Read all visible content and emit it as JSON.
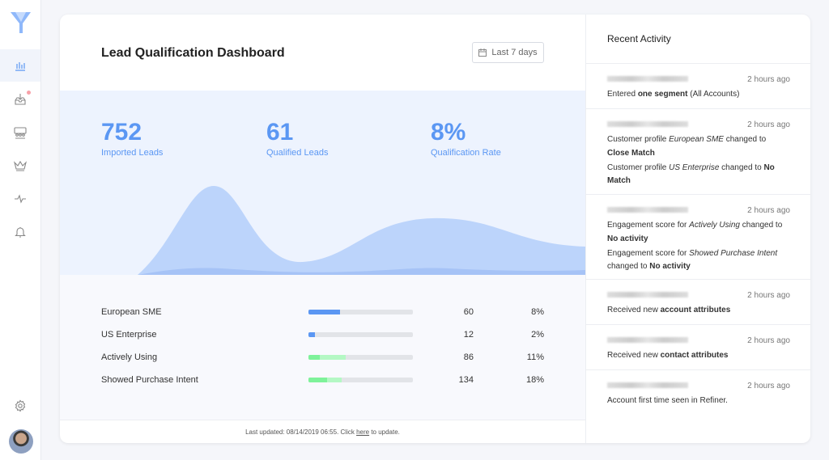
{
  "sidebar": {
    "items": [
      "dashboard",
      "imports",
      "segments",
      "profiles",
      "engagement",
      "notifications"
    ],
    "settings": "settings"
  },
  "title": "Lead Qualification Dashboard",
  "date_range": "Last 7 days",
  "stats": [
    {
      "value": "752",
      "label": "Imported Leads"
    },
    {
      "value": "61",
      "label": "Qualified Leads"
    },
    {
      "value": "8%",
      "label": "Qualification Rate"
    }
  ],
  "colors": {
    "accent": "#5b97f3",
    "green": "#7ef29a"
  },
  "rows": [
    {
      "name": "European SME",
      "count": "60",
      "pct": "8%",
      "fill": 0.3,
      "fill2": 0,
      "color": "#5b97f3",
      "color2": "#5b97f3"
    },
    {
      "name": "US Enterprise",
      "count": "12",
      "pct": "2%",
      "fill": 0.06,
      "fill2": 0,
      "color": "#5b97f3",
      "color2": "#5b97f3"
    },
    {
      "name": "Actively Using",
      "count": "86",
      "pct": "11%",
      "fill": 0.11,
      "fill2": 0.36,
      "color": "#7ef29a",
      "color2": "#b4f8c4"
    },
    {
      "name": "Showed Purchase Intent",
      "count": "134",
      "pct": "18%",
      "fill": 0.18,
      "fill2": 0.32,
      "color": "#7ef29a",
      "color2": "#b4f8c4"
    }
  ],
  "footer": {
    "prefix": "Last updated: 08/14/2019 06:55. Click ",
    "link": "here",
    "suffix": " to update."
  },
  "activity": {
    "title": "Recent Activity",
    "items": [
      {
        "time": "2 hours ago",
        "lines": [
          [
            [
              "Entered ",
              ""
            ],
            [
              "one segment",
              "b"
            ],
            [
              " (All Accounts)",
              ""
            ]
          ]
        ]
      },
      {
        "time": "2 hours ago",
        "lines": [
          [
            [
              "Customer profile ",
              ""
            ],
            [
              "European SME",
              "i"
            ],
            [
              " changed to ",
              ""
            ],
            [
              "Close Match",
              "b"
            ]
          ],
          [
            [
              "Customer profile ",
              ""
            ],
            [
              "US Enterprise",
              "i"
            ],
            [
              " changed to ",
              ""
            ],
            [
              "No Match",
              "b"
            ]
          ]
        ]
      },
      {
        "time": "2 hours ago",
        "lines": [
          [
            [
              "Engagement score for ",
              ""
            ],
            [
              "Actively Using",
              "i"
            ],
            [
              " changed to ",
              ""
            ],
            [
              "No activity",
              "b"
            ]
          ],
          [
            [
              "Engagement score for ",
              ""
            ],
            [
              "Showed Purchase Intent",
              "i"
            ],
            [
              " changed to ",
              ""
            ],
            [
              "No activity",
              "b"
            ]
          ]
        ]
      },
      {
        "time": "2 hours ago",
        "lines": [
          [
            [
              "Received new ",
              ""
            ],
            [
              "account attributes",
              "b"
            ]
          ]
        ]
      },
      {
        "time": "2 hours ago",
        "lines": [
          [
            [
              "Received new ",
              ""
            ],
            [
              "contact attributes",
              "b"
            ]
          ]
        ]
      },
      {
        "time": "2 hours ago",
        "lines": [
          [
            [
              "Account first time seen in Refiner.",
              ""
            ]
          ]
        ]
      }
    ]
  }
}
